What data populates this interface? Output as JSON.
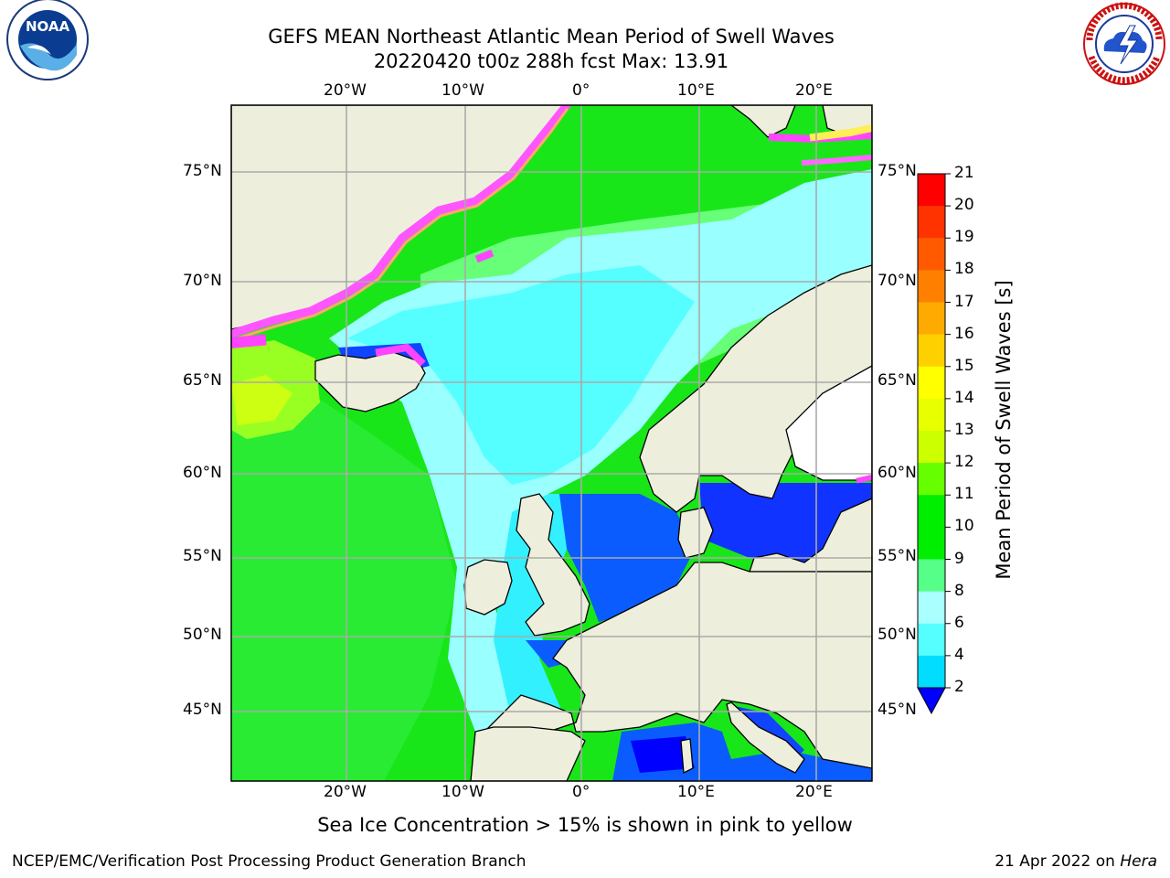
{
  "title": {
    "line1": "GEFS MEAN Northeast Atlantic Mean Period of Swell Waves",
    "line2": "20220420 t00z 288h fcst   Max: 13.91"
  },
  "axes": {
    "lon_labels_top": [
      "20°W",
      "10°W",
      "0°",
      "10°E",
      "20°E"
    ],
    "lon_labels_bottom": [
      "20°W",
      "10°W",
      "0°",
      "10°E",
      "20°E"
    ],
    "lat_labels_left": [
      "75°N",
      "70°N",
      "65°N",
      "60°N",
      "55°N",
      "50°N",
      "45°N"
    ],
    "lat_labels_right": [
      "75°N",
      "70°N",
      "65°N",
      "60°N",
      "55°N",
      "50°N",
      "45°N"
    ]
  },
  "colorbar": {
    "label": "Mean Period of Swell Waves [s]",
    "ticks": [
      "21",
      "20",
      "19",
      "18",
      "17",
      "16",
      "15",
      "14",
      "13",
      "12",
      "11",
      "10",
      "9",
      "8",
      "6",
      "4",
      "2"
    ],
    "colors": [
      "#ff0000",
      "#ff3300",
      "#ff5a00",
      "#ff8000",
      "#ffaa00",
      "#ffd000",
      "#ffff00",
      "#e8ff00",
      "#ccff00",
      "#66ff00",
      "#00ee00",
      "#00ee00",
      "#55ff88",
      "#aaffff",
      "#55ffff",
      "#00ddff",
      "#0099ff",
      "#0000ff"
    ],
    "extend": "min"
  },
  "caption": "Sea Ice Concentration > 15% is shown in pink to yellow",
  "footer": {
    "left": "NCEP/EMC/Verification Post Processing Product Generation Branch",
    "date": "21 Apr 2022 on ",
    "host": "Hera"
  },
  "logos": {
    "left": "noaa-logo",
    "right": "national-weather-service-logo",
    "right_text": "NATIONAL WEATHER SERVICE"
  }
}
